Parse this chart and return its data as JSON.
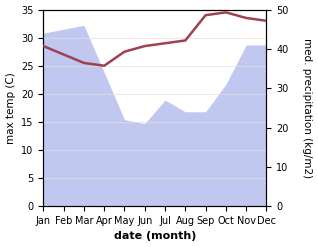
{
  "months": [
    "Jan",
    "Feb",
    "Mar",
    "Apr",
    "May",
    "Jun",
    "Jul",
    "Aug",
    "Sep",
    "Oct",
    "Nov",
    "Dec"
  ],
  "temperature": [
    28.5,
    27.0,
    25.5,
    25.0,
    27.5,
    28.5,
    29.0,
    29.5,
    34.0,
    34.5,
    33.5,
    33.0
  ],
  "precipitation": [
    44,
    45,
    46,
    34,
    22,
    21,
    27,
    24,
    24,
    31,
    41,
    41
  ],
  "temp_color": "#a04050",
  "precip_fill_color": "#c0c8f0",
  "precip_line_color": "#9098d0",
  "ylabel_left": "max temp (C)",
  "ylabel_right": "med. precipitation (kg/m2)",
  "xlabel": "date (month)",
  "ylim_left": [
    0,
    35
  ],
  "ylim_right": [
    0,
    50
  ],
  "yticks_left": [
    0,
    5,
    10,
    15,
    20,
    25,
    30,
    35
  ],
  "yticks_right": [
    0,
    10,
    20,
    30,
    40,
    50
  ],
  "background_color": "#ffffff",
  "label_fontsize": 7.5,
  "tick_fontsize": 7,
  "xlabel_fontsize": 8,
  "line_width": 1.8
}
